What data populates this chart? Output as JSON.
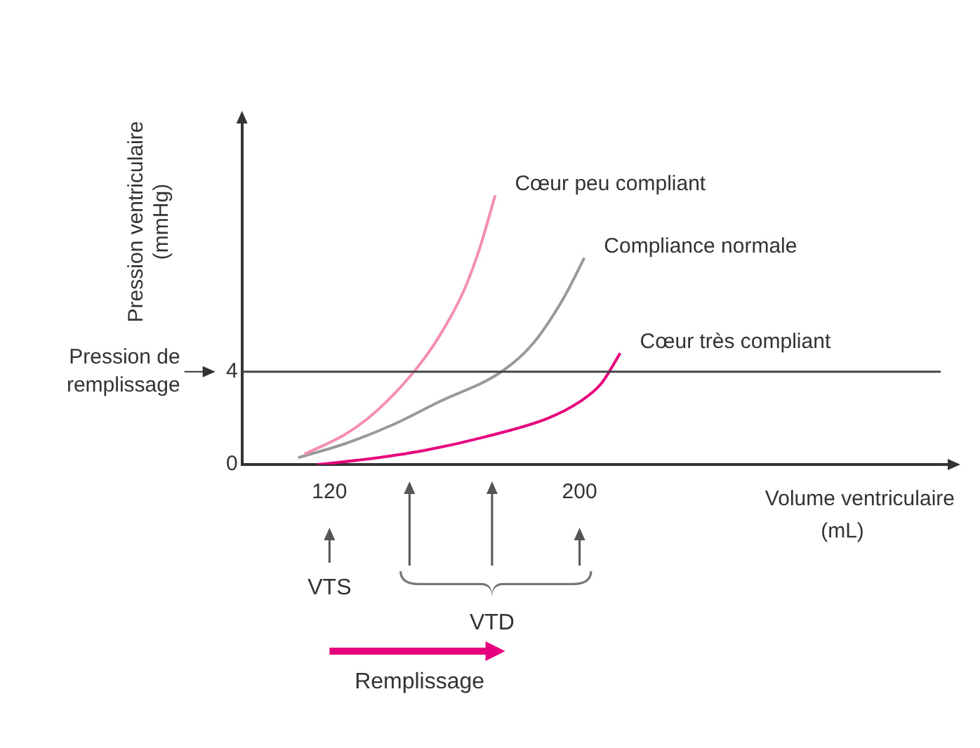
{
  "chart_data": {
    "type": "line",
    "xlabel": "Volume ventriculaire (mL)",
    "ylabel": "Pression ventriculaire (mmHg)",
    "xlim": [
      92,
      320
    ],
    "xticks": [
      120,
      200
    ],
    "ylim": [
      0,
      15
    ],
    "yticks": [
      0,
      4
    ],
    "series": [
      {
        "name": "Cœur peu compliant",
        "color": "#f48fb1",
        "x": [
          112,
          125,
          135,
          147,
          155,
          163,
          168,
          173
        ],
        "values": [
          0.45,
          1.3,
          2.3,
          4,
          5.5,
          7.5,
          9.3,
          11.6
        ]
      },
      {
        "name": "Compliance normale",
        "color": "#999999",
        "x": [
          110,
          125,
          140,
          155,
          175,
          185,
          195,
          201.5
        ],
        "values": [
          0.3,
          0.9,
          1.7,
          2.7,
          4,
          5.2,
          7.2,
          8.9
        ]
      },
      {
        "name": "Cœur très compliant",
        "color": "#e6007e",
        "x": [
          116,
          130,
          150,
          170,
          190,
          200,
          207,
          213
        ],
        "values": [
          0,
          0.2,
          0.6,
          1.2,
          2,
          2.7,
          3.5,
          4.8
        ]
      }
    ],
    "ref_lines": [
      {
        "axis": "y",
        "value": 4,
        "label": "Pression de remplissage",
        "color": "#444444"
      }
    ],
    "annotations": [
      "VTS",
      "VTD",
      "Remplissage"
    ],
    "grid": false,
    "legend": false,
    "marker": "none",
    "line_style": "solid"
  }
}
